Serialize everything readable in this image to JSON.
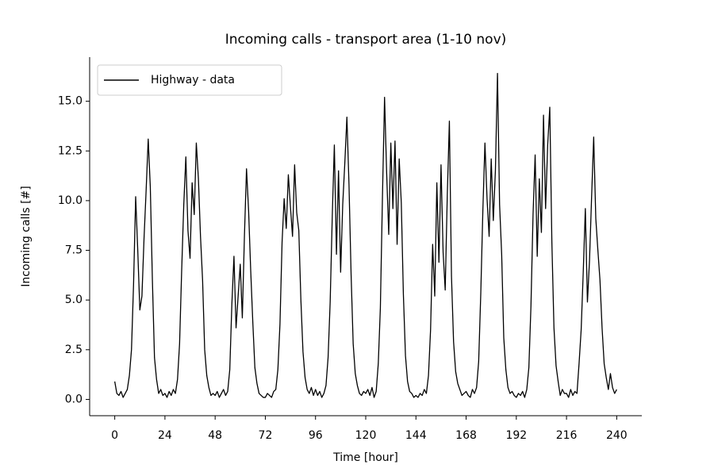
{
  "chart_data": {
    "type": "line",
    "title": "Incoming calls - transport area (1-10 nov)",
    "x_label": "Time [hour]",
    "y_label": "Incoming calls [#]",
    "x": [
      0,
      1,
      2,
      3,
      4,
      5,
      6,
      7,
      8,
      9,
      10,
      11,
      12,
      13,
      14,
      15,
      16,
      17,
      18,
      19,
      20,
      21,
      22,
      23,
      24,
      25,
      26,
      27,
      28,
      29,
      30,
      31,
      32,
      33,
      34,
      35,
      36,
      37,
      38,
      39,
      40,
      41,
      42,
      43,
      44,
      45,
      46,
      47,
      48,
      49,
      50,
      51,
      52,
      53,
      54,
      55,
      56,
      57,
      58,
      59,
      60,
      61,
      62,
      63,
      64,
      65,
      66,
      67,
      68,
      69,
      70,
      71,
      72,
      73,
      74,
      75,
      76,
      77,
      78,
      79,
      80,
      81,
      82,
      83,
      84,
      85,
      86,
      87,
      88,
      89,
      90,
      91,
      92,
      93,
      94,
      95,
      96,
      97,
      98,
      99,
      100,
      101,
      102,
      103,
      104,
      105,
      106,
      107,
      108,
      109,
      110,
      111,
      112,
      113,
      114,
      115,
      116,
      117,
      118,
      119,
      120,
      121,
      122,
      123,
      124,
      125,
      126,
      127,
      128,
      129,
      130,
      131,
      132,
      133,
      134,
      135,
      136,
      137,
      138,
      139,
      140,
      141,
      142,
      143,
      144,
      145,
      146,
      147,
      148,
      149,
      150,
      151,
      152,
      153,
      154,
      155,
      156,
      157,
      158,
      159,
      160,
      161,
      162,
      163,
      164,
      165,
      166,
      167,
      168,
      169,
      170,
      171,
      172,
      173,
      174,
      175,
      176,
      177,
      178,
      179,
      180,
      181,
      182,
      183,
      184,
      185,
      186,
      187,
      188,
      189,
      190,
      191,
      192,
      193,
      194,
      195,
      196,
      197,
      198,
      199,
      200,
      201,
      202,
      203,
      204,
      205,
      206,
      207,
      208,
      209,
      210,
      211,
      212,
      213,
      214,
      215,
      216,
      217,
      218,
      219,
      220,
      221,
      222,
      223,
      224,
      225,
      226,
      227,
      228,
      229,
      230,
      231,
      232,
      233,
      234,
      235,
      236,
      237,
      238,
      239,
      240
    ],
    "series": [
      {
        "name": "Highway - data",
        "color": "#000000",
        "values": [
          0.9,
          0.3,
          0.2,
          0.4,
          0.1,
          0.3,
          0.5,
          1.2,
          2.5,
          5.8,
          10.2,
          7.5,
          4.5,
          5.2,
          8.1,
          10.5,
          13.1,
          10.7,
          6.0,
          2.1,
          1.0,
          0.3,
          0.5,
          0.2,
          0.3,
          0.1,
          0.4,
          0.2,
          0.5,
          0.3,
          1.0,
          2.8,
          6.5,
          9.8,
          12.2,
          8.5,
          7.1,
          10.9,
          9.3,
          12.9,
          11.1,
          8.2,
          6.0,
          2.5,
          1.2,
          0.6,
          0.2,
          0.3,
          0.2,
          0.4,
          0.1,
          0.3,
          0.5,
          0.2,
          0.4,
          1.5,
          4.8,
          7.2,
          3.6,
          5.2,
          6.8,
          4.1,
          8.2,
          11.6,
          9.5,
          6.5,
          3.9,
          1.6,
          0.8,
          0.3,
          0.2,
          0.1,
          0.1,
          0.3,
          0.2,
          0.1,
          0.4,
          0.5,
          1.5,
          3.8,
          7.9,
          10.1,
          8.6,
          11.3,
          9.7,
          8.2,
          11.8,
          9.4,
          8.5,
          5.0,
          2.4,
          1.1,
          0.5,
          0.3,
          0.6,
          0.2,
          0.5,
          0.2,
          0.4,
          0.1,
          0.3,
          0.7,
          2.1,
          4.9,
          9.2,
          12.8,
          7.3,
          11.5,
          6.4,
          9.8,
          11.9,
          14.2,
          10.8,
          6.3,
          2.8,
          1.3,
          0.7,
          0.3,
          0.2,
          0.4,
          0.3,
          0.5,
          0.2,
          0.6,
          0.1,
          0.4,
          1.8,
          4.6,
          10.2,
          15.2,
          11.4,
          8.3,
          12.9,
          9.6,
          13.0,
          7.8,
          12.1,
          9.9,
          5.3,
          2.2,
          0.9,
          0.4,
          0.3,
          0.1,
          0.2,
          0.1,
          0.3,
          0.2,
          0.5,
          0.3,
          1.2,
          3.5,
          7.8,
          5.2,
          10.9,
          6.9,
          11.8,
          7.4,
          5.5,
          10.3,
          14.0,
          6.2,
          2.9,
          1.4,
          0.8,
          0.5,
          0.2,
          0.3,
          0.4,
          0.2,
          0.1,
          0.5,
          0.3,
          0.6,
          1.9,
          5.3,
          9.5,
          12.9,
          10.1,
          8.2,
          12.1,
          9.0,
          11.5,
          16.4,
          9.8,
          7.3,
          3.1,
          1.5,
          0.6,
          0.3,
          0.4,
          0.2,
          0.1,
          0.3,
          0.2,
          0.4,
          0.1,
          0.5,
          1.6,
          4.7,
          9.3,
          12.3,
          7.2,
          11.1,
          8.4,
          14.3,
          9.6,
          12.8,
          14.7,
          7.9,
          3.6,
          1.7,
          0.9,
          0.2,
          0.5,
          0.3,
          0.3,
          0.1,
          0.5,
          0.2,
          0.4,
          0.3,
          1.8,
          3.5,
          6.4,
          9.6,
          4.9,
          7.0,
          10.2,
          13.2,
          9.1,
          7.5,
          6.0,
          3.6,
          1.8,
          1.1,
          0.5,
          1.3,
          0.6,
          0.3,
          0.5
        ]
      }
    ],
    "xlim": [
      -12,
      252
    ],
    "ylim": [
      -0.82,
      17.22
    ],
    "xticks": [
      0,
      24,
      48,
      72,
      96,
      120,
      144,
      168,
      192,
      216,
      240
    ],
    "yticks": [
      {
        "value": 0,
        "label": "0.0"
      },
      2.5,
      {
        "value": 5,
        "label": "5.0"
      },
      7.5,
      {
        "value": 10,
        "label": "10.0"
      },
      12.5,
      {
        "value": 15,
        "label": "15.0"
      }
    ],
    "legend": "upper left"
  }
}
